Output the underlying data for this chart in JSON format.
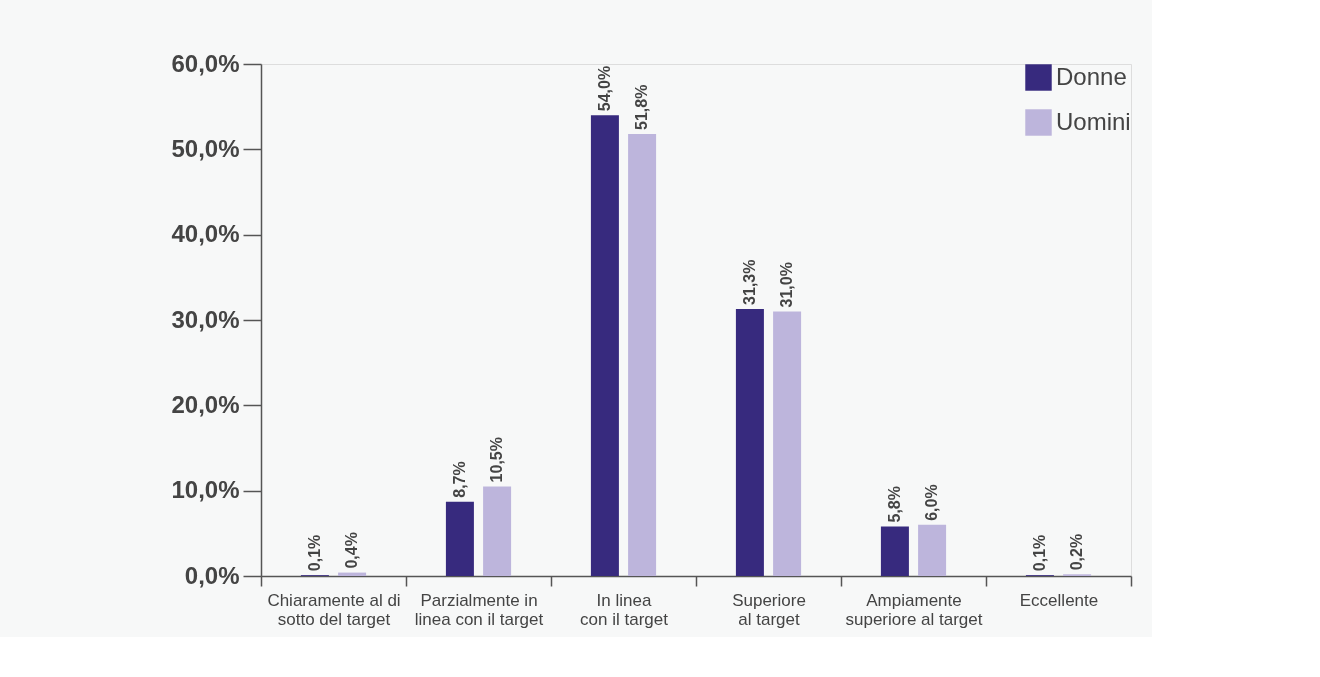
{
  "chart_data": {
    "type": "bar",
    "categories": [
      "Chiaramente al di\nsotto del target",
      "Parzialmente in\nlinea con il target",
      "In linea\ncon il target",
      "Superiore\nal target",
      "Ampiamente\nsuperiore al target",
      "Eccellente"
    ],
    "series": [
      {
        "name": "Donne",
        "color": "#372a7e",
        "values": [
          0.1,
          8.7,
          54.0,
          31.3,
          5.8,
          0.1
        ],
        "value_labels": [
          "0,1%",
          "8,7%",
          "54,0%",
          "31,3%",
          "5,8%",
          "0,1%"
        ]
      },
      {
        "name": "Uomini",
        "color": "#bdb5dc",
        "values": [
          0.4,
          10.5,
          51.8,
          31.0,
          6.0,
          0.2
        ],
        "value_labels": [
          "0,4%",
          "10,5%",
          "51,8%",
          "31,0%",
          "6,0%",
          "0,2%"
        ]
      }
    ],
    "ylim": [
      0,
      60
    ],
    "yticks": [
      {
        "value": 0,
        "label": "0,0%"
      },
      {
        "value": 10,
        "label": "10,0%"
      },
      {
        "value": 20,
        "label": "20,0%"
      },
      {
        "value": 30,
        "label": "30,0%"
      },
      {
        "value": 40,
        "label": "40,0%"
      },
      {
        "value": 50,
        "label": "50,0%"
      },
      {
        "value": 60,
        "label": "60,0%"
      }
    ],
    "grid": false,
    "legend": "top right"
  }
}
